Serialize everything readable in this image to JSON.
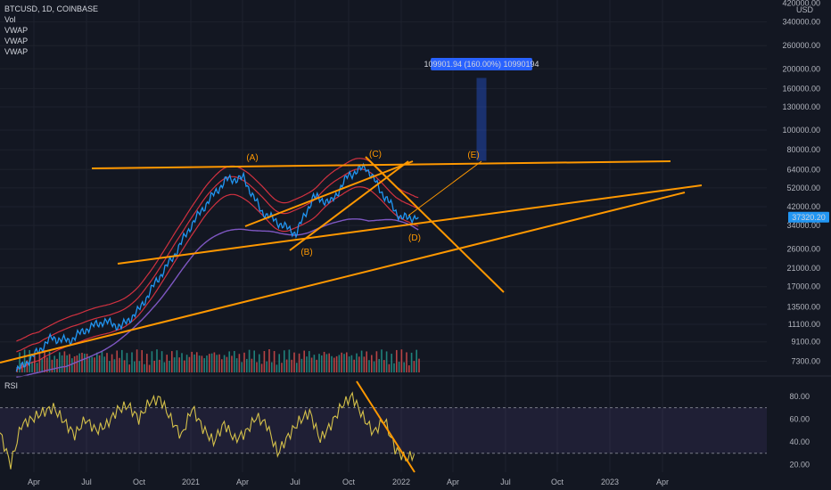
{
  "header": {
    "symbol_line": "BTCUSD, 1D, COINBASE",
    "indicators": [
      "Vol",
      "VWAP",
      "VWAP",
      "VWAP"
    ]
  },
  "rsi_title": "RSI",
  "price_axis": {
    "currency": "USD",
    "ticks": [
      "420000.00",
      "340000.00",
      "260000.00",
      "200000.00",
      "160000.00",
      "130000.00",
      "100000.00",
      "80000.00",
      "64000.00",
      "52000.00",
      "42000.00",
      "34000.00",
      "26000.00",
      "21000.00",
      "17000.00",
      "13500.00",
      "11100.00",
      "9100.00",
      "7300.00"
    ],
    "current_price": "37320.20"
  },
  "rsi_axis": {
    "ticks": [
      "80.00",
      "60.00",
      "40.00",
      "20.00"
    ]
  },
  "time_axis": {
    "ticks": [
      "Apr",
      "Jul",
      "Oct",
      "2021",
      "Apr",
      "Jul",
      "Oct",
      "2022",
      "Apr",
      "Jul",
      "Oct",
      "2023",
      "Apr"
    ]
  },
  "projection_label": "109901.94 (160.00%) 10990194",
  "wave_labels": [
    "(A)",
    "(B)",
    "(C)",
    "(D)",
    "(E)"
  ],
  "colors": {
    "background": "#131722",
    "price": "#2196f3",
    "bands": "#f23645",
    "vwap": "#7e57c2",
    "trendlines": "#ff9800",
    "rsi": "#d4c04a",
    "rsi_band": "#7e57c2",
    "vol_up": "#26a69a",
    "vol_down": "#ef5350",
    "projection": "#2962ff"
  },
  "chart_data": {
    "type": "line",
    "title": "BTCUSD, 1D, COINBASE",
    "y_scale": "log",
    "ylim": [
      6500,
      420000
    ],
    "series": [
      {
        "name": "BTCUSD",
        "x": [
          "2020-03",
          "2020-04",
          "2020-05",
          "2020-06",
          "2020-07",
          "2020-08",
          "2020-09",
          "2020-10",
          "2020-11",
          "2020-12",
          "2021-01",
          "2021-02",
          "2021-03",
          "2021-04",
          "2021-05",
          "2021-06",
          "2021-07",
          "2021-08",
          "2021-09",
          "2021-10",
          "2021-11",
          "2021-12",
          "2022-01",
          "2022-02"
        ],
        "values": [
          6500,
          7800,
          9500,
          9200,
          10500,
          11500,
          10800,
          13000,
          18000,
          24000,
          34000,
          45000,
          57000,
          58000,
          40000,
          35000,
          31000,
          47000,
          44000,
          60000,
          66000,
          48000,
          37000,
          37320
        ]
      }
    ],
    "rsi": {
      "name": "RSI",
      "ylim": [
        15,
        90
      ],
      "band": [
        30,
        70
      ],
      "values": [
        48,
        20,
        55,
        60,
        66,
        70,
        58,
        46,
        60,
        50,
        55,
        68,
        72,
        60,
        75,
        78,
        60,
        45,
        70,
        52,
        40,
        56,
        42,
        48,
        62,
        55,
        30,
        45,
        58,
        66,
        42,
        55,
        72,
        80,
        62,
        48,
        60,
        34,
        25,
        30
      ]
    }
  }
}
